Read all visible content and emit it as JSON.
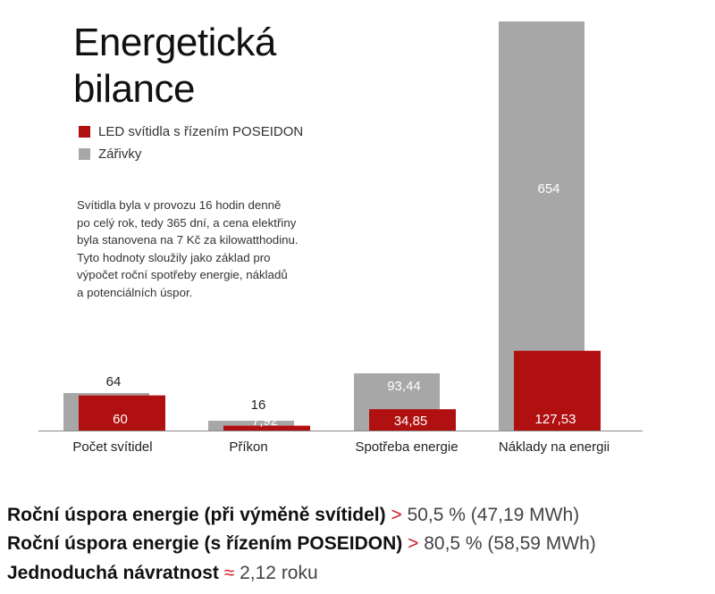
{
  "title_lines": [
    "Energetická",
    "bilance"
  ],
  "legend": [
    {
      "label": "LED svítidla s řízením POSEIDON",
      "color": "#b0100f"
    },
    {
      "label": "Zářivky",
      "color": "#a7a7a7"
    }
  ],
  "description_lines": [
    "Svítidla byla v provozu 16 hodin denně",
    "po celý rok, tedy 365 dní, a cena elektřiny",
    "byla stanovena na 7 Kč za kilowatthodinu.",
    "Tyto hodnoty sloužily jako základ pro",
    "výpočet roční spotřeby energie, nákladů",
    "a potenciálních úspor."
  ],
  "chart_data": {
    "type": "bar",
    "categories": [
      "Počet svítidel",
      "Příkon",
      "Spotřeba energie",
      "Náklady na energii"
    ],
    "series": [
      {
        "name": "Zářivky",
        "values": [
          64,
          16,
          93.44,
          654
        ],
        "labels": [
          "64",
          "16",
          "93,44",
          "654"
        ],
        "color": "#a7a7a7"
      },
      {
        "name": "LED svítidla s řízením POSEIDON",
        "values": [
          60,
          7.92,
          34.85,
          127.53
        ],
        "labels": [
          "60",
          "7,92",
          "34,85",
          "127,53"
        ],
        "color": "#b0100f"
      }
    ],
    "per_category_max_value": [
      64,
      16,
      93.44,
      654
    ]
  },
  "stats": [
    {
      "bold": "Roční úspora energie (při výměně svítidel)",
      "symbol": ">",
      "value": "50,5 % (47,19 MWh)"
    },
    {
      "bold": "Roční úspora energie (s řízením POSEIDON)",
      "symbol": ">",
      "value": "80,5 % (58,59 MWh)"
    },
    {
      "bold": "Jednoduchá návratnost",
      "symbol": "≈",
      "value": "2,12 roku"
    }
  ]
}
